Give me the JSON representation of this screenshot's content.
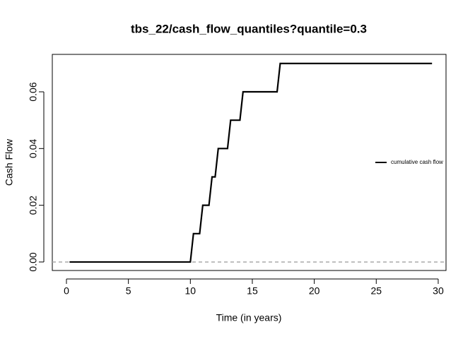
{
  "chart_data": {
    "type": "line",
    "title": "tbs_22/cash_flow_quantiles?quantile=0.3",
    "xlabel": "Time (in years)",
    "ylabel": "Cash Flow",
    "x": [
      0.25,
      10.0,
      10.25,
      10.75,
      11.0,
      11.5,
      11.75,
      12.0,
      12.25,
      13.0,
      13.25,
      14.0,
      14.25,
      17.0,
      17.25,
      29.5
    ],
    "series": [
      {
        "name": "cumulative cash flow",
        "color": "#000000",
        "values": [
          0,
          0,
          0.01,
          0.01,
          0.02,
          0.02,
          0.03,
          0.03,
          0.04,
          0.04,
          0.05,
          0.05,
          0.06,
          0.06,
          0.07,
          0.07
        ]
      }
    ],
    "reference_line": {
      "y": 0,
      "color": "#aaaaaa",
      "style": "dashed"
    },
    "xlim": [
      -1.14,
      30.63
    ],
    "ylim": [
      -0.003,
      0.0732
    ],
    "xticks": [
      0,
      5,
      10,
      15,
      20,
      25,
      30
    ],
    "yticks": [
      {
        "value": 0,
        "label": "0.00"
      },
      {
        "value": 0.02,
        "label": "0.02"
      },
      {
        "value": 0.04,
        "label": "0.04"
      },
      {
        "value": 0.06,
        "label": "0.06"
      }
    ],
    "legend": "right",
    "grid": false
  }
}
